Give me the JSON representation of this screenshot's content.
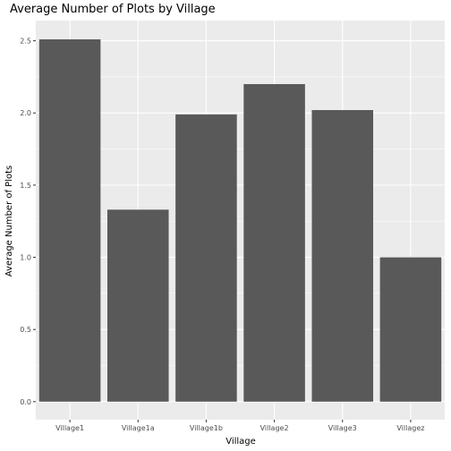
{
  "chart_data": {
    "type": "bar",
    "title": "Average Number of Plots by Village",
    "xlabel": "Village",
    "ylabel": "Average Number of Plots",
    "categories": [
      "Village1",
      "Village1a",
      "Village1b",
      "Village2",
      "Village3",
      "Villagez"
    ],
    "values": [
      2.51,
      1.33,
      1.99,
      2.2,
      2.02,
      1.0
    ],
    "ylim": [
      -0.125,
      2.64
    ],
    "yticks": [
      0.0,
      0.5,
      1.0,
      1.5,
      2.0,
      2.5
    ],
    "ytick_labels": [
      "0.0",
      "0.5",
      "1.0",
      "1.5",
      "2.0",
      "2.5"
    ],
    "grid": true,
    "legend": "none",
    "colors": {
      "bar": "#595959",
      "panel": "#ebebeb",
      "grid_major": "#ffffff",
      "tick_text": "#4d4d4d",
      "tick_mark": "#333333"
    }
  }
}
